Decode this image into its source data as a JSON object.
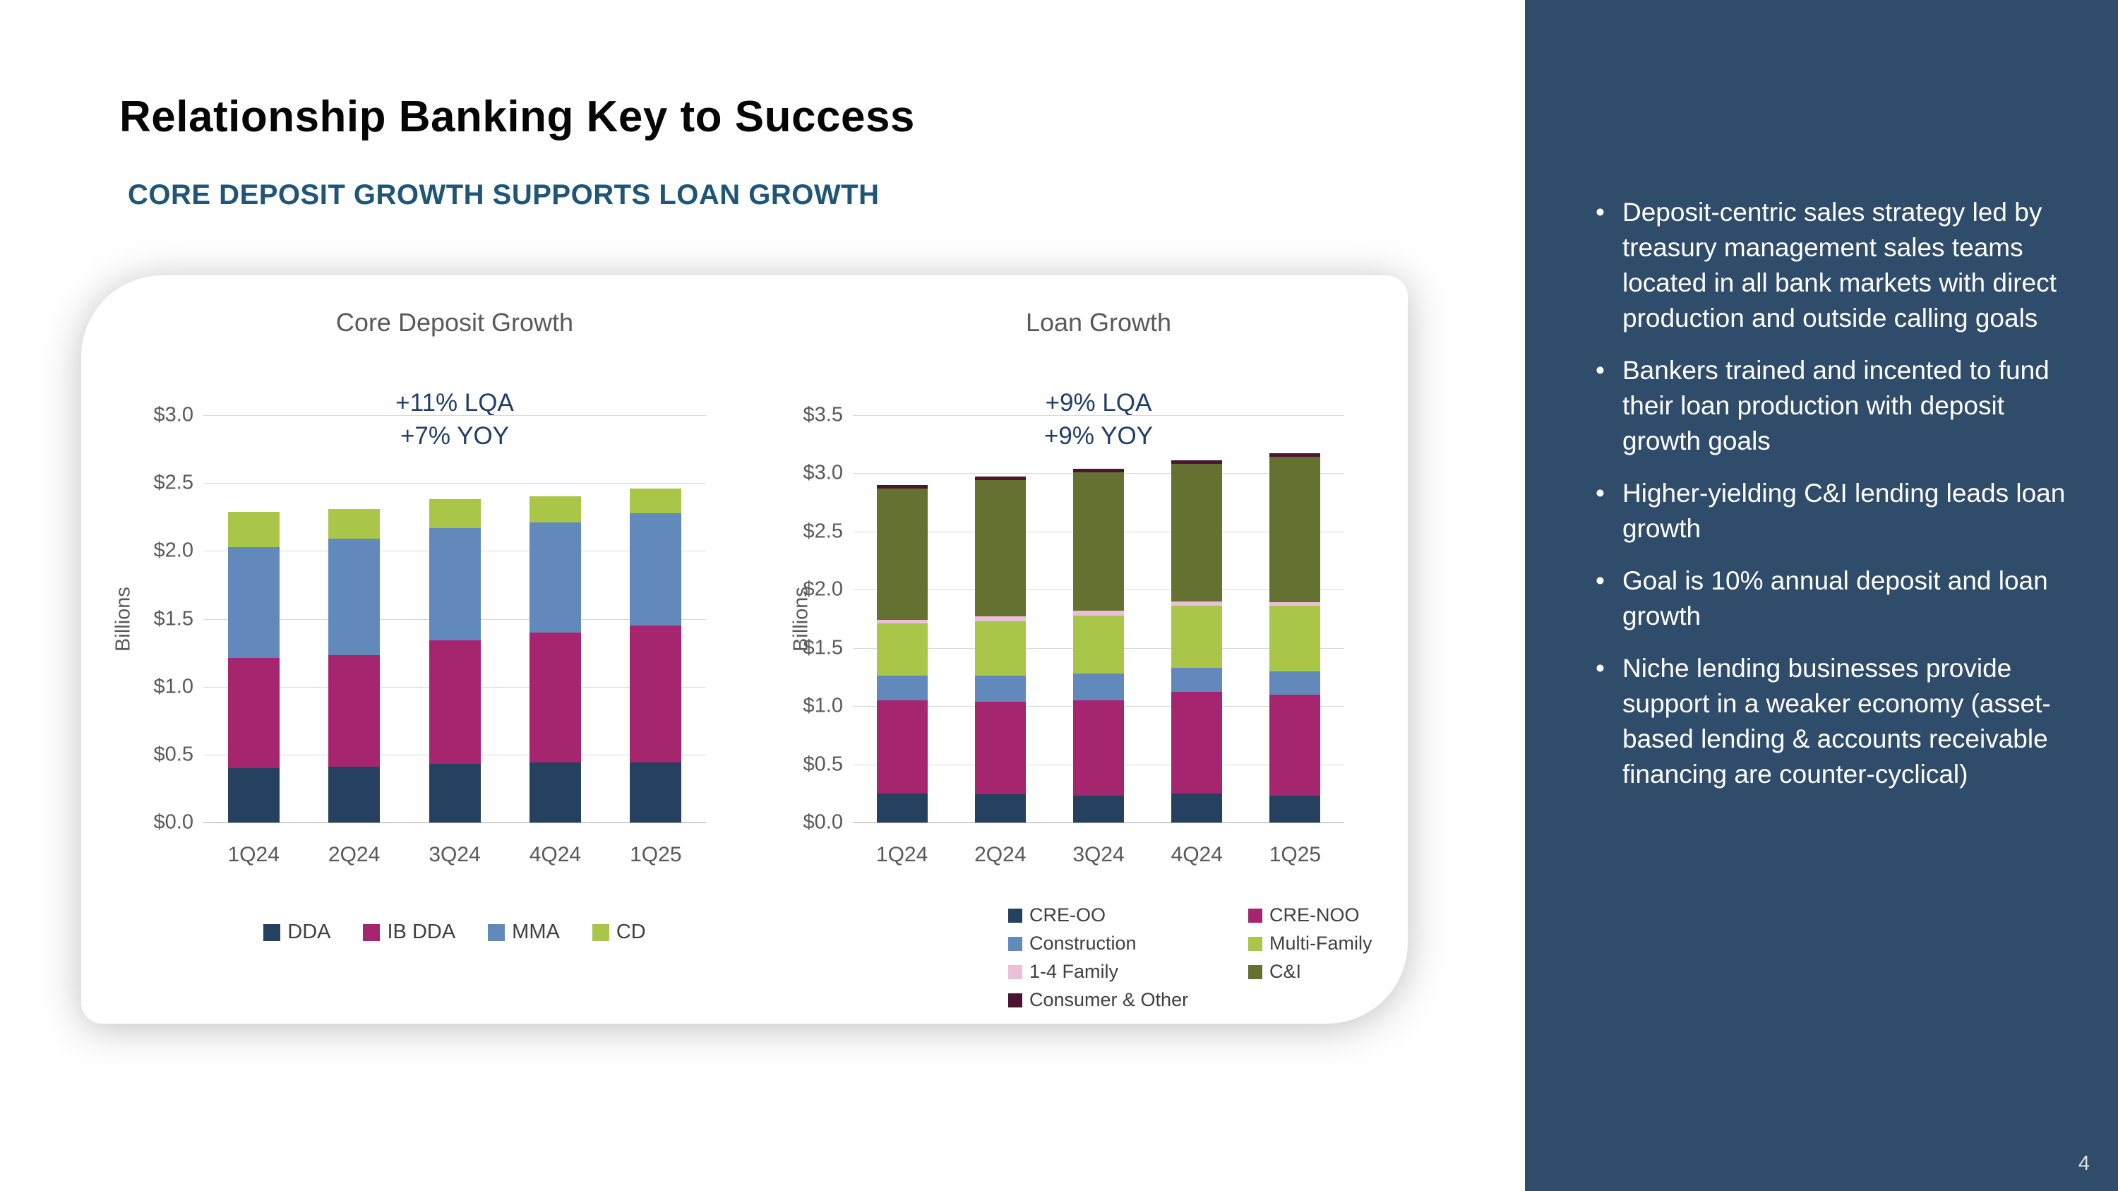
{
  "slide": {
    "title": "Relationship Banking Key to Success",
    "subtitle": "CORE DEPOSIT GROWTH SUPPORTS LOAN GROWTH",
    "page_number": "4"
  },
  "sidebar": {
    "bullets": [
      "Deposit-centric sales strategy led by treasury management sales teams located in all bank markets with direct production and outside calling goals",
      "Bankers trained and incented to fund their loan production with deposit growth goals",
      "Higher-yielding C&I lending leads loan growth",
      "Goal is 10% annual deposit and loan growth",
      "Niche lending businesses provide support in a weaker economy (asset-based lending & accounts receivable financing are counter-cyclical)"
    ]
  },
  "colors": {
    "sidebar_bg": "#2F4C6A",
    "subtitle": "#1F5577",
    "annotation": "#203F67",
    "axis_text": "#595959",
    "legend_text": "#404040",
    "gridline": "#D9D9D9"
  },
  "chart_data": [
    {
      "type": "bar",
      "stacked": true,
      "title": "Core Deposit Growth",
      "annotation": [
        "+11% LQA",
        "+7% YOY"
      ],
      "ylabel": "Billions",
      "ylim": [
        0,
        3.0
      ],
      "ytick_step": 0.5,
      "ytick_labels": [
        "$0.0",
        "$0.5",
        "$1.0",
        "$1.5",
        "$2.0",
        "$2.5",
        "$3.0"
      ],
      "categories": [
        "1Q24",
        "2Q24",
        "3Q24",
        "4Q24",
        "1Q25"
      ],
      "series": [
        {
          "name": "DDA",
          "color": "#26405F",
          "values": [
            0.4,
            0.41,
            0.43,
            0.44,
            0.44
          ]
        },
        {
          "name": "IB DDA",
          "color": "#A5256F",
          "values": [
            0.81,
            0.82,
            0.91,
            0.96,
            1.01
          ]
        },
        {
          "name": "MMA",
          "color": "#6289BB",
          "values": [
            0.82,
            0.86,
            0.83,
            0.81,
            0.83
          ]
        },
        {
          "name": "CD",
          "color": "#A9C648",
          "values": [
            0.26,
            0.22,
            0.21,
            0.19,
            0.18
          ]
        }
      ],
      "legend_order": [
        0,
        1,
        2,
        3
      ],
      "legend_position": "bottom",
      "grid": true
    },
    {
      "type": "bar",
      "stacked": true,
      "title": "Loan Growth",
      "annotation": [
        "+9% LQA",
        "+9% YOY"
      ],
      "ylabel": "Billions",
      "ylim": [
        0,
        3.5
      ],
      "ytick_step": 0.5,
      "ytick_labels": [
        "$0.0",
        "$0.5",
        "$1.0",
        "$1.5",
        "$2.0",
        "$2.5",
        "$3.0",
        "$3.5"
      ],
      "categories": [
        "1Q24",
        "2Q24",
        "3Q24",
        "4Q24",
        "1Q25"
      ],
      "series": [
        {
          "name": "CRE-OO",
          "color": "#26405F",
          "values": [
            0.25,
            0.24,
            0.23,
            0.25,
            0.23
          ]
        },
        {
          "name": "CRE-NOO",
          "color": "#A5256F",
          "values": [
            0.8,
            0.8,
            0.82,
            0.87,
            0.87
          ]
        },
        {
          "name": "Construction",
          "color": "#6289BB",
          "values": [
            0.21,
            0.22,
            0.23,
            0.21,
            0.2
          ]
        },
        {
          "name": "Multi-Family",
          "color": "#A9C648",
          "values": [
            0.45,
            0.47,
            0.5,
            0.53,
            0.56
          ]
        },
        {
          "name": "1-4 Family",
          "color": "#EBBFD7",
          "values": [
            0.03,
            0.04,
            0.04,
            0.04,
            0.03
          ]
        },
        {
          "name": "C&I",
          "color": "#647130",
          "values": [
            1.13,
            1.17,
            1.19,
            1.18,
            1.25
          ]
        },
        {
          "name": "Consumer & Other",
          "color": "#4A1530",
          "values": [
            0.03,
            0.03,
            0.03,
            0.03,
            0.03
          ]
        }
      ],
      "legend_order": [
        0,
        2,
        4,
        6,
        1,
        3,
        5
      ],
      "legend_position": "bottom",
      "grid": true
    }
  ]
}
